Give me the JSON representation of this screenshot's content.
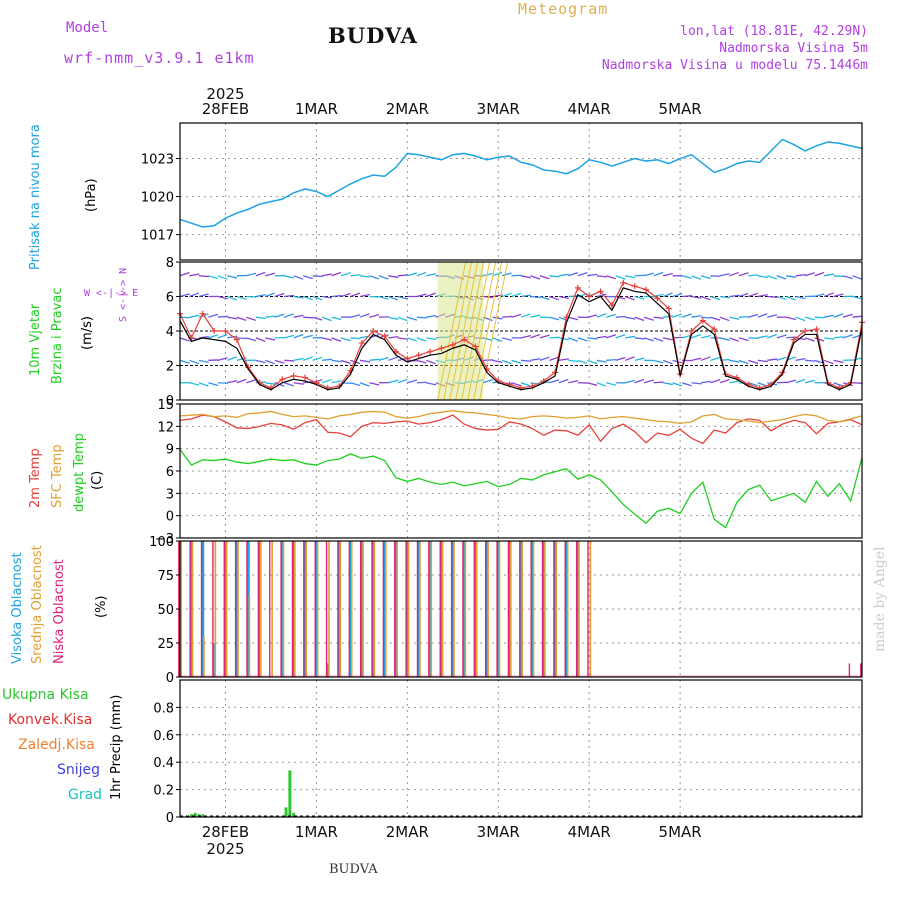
{
  "header": {
    "meteogram_label": "Meteogram",
    "model_label": "Model",
    "model_name": "wrf-nmm_v3.9.1 e1km",
    "station_title": "BUDVA",
    "coords": "lon,lat (18.81E, 42.29N)",
    "elevation": "Nadmorska Visina 5m",
    "model_elevation": "Nadmorska Visina u modelu 75.1446m",
    "footer_station": "BUDVA",
    "watermark": "made by Angel"
  },
  "time_axis": {
    "year": "2025",
    "days": [
      "28FEB",
      "1MAR",
      "2MAR",
      "3MAR",
      "4MAR",
      "5MAR"
    ]
  },
  "panel_labels": {
    "pressure": {
      "title": "Pritisak na nivou mora",
      "unit": "(hPa)"
    },
    "wind": {
      "title1": "10m Vjetar",
      "title2": "Brzina i Pravac",
      "unit": "(m/s)",
      "compass_we": "W <-|-> E",
      "compass_ns": "S <-|-> N"
    },
    "temp": {
      "t2m": "2m Temp",
      "sfc": "SFC Temp",
      "dew": "dewpt Temp",
      "unit": "(C)"
    },
    "cloud": {
      "high": "Visoka Oblacnost",
      "mid": "Srednja Oblacnost",
      "low": "Niska Oblacnost",
      "unit": "(%)"
    },
    "precip": {
      "total": "Ukupna Kisa",
      "conv": "Konvek.Kisa",
      "frozen": "Zaledj.Kisa",
      "snow": "Snijeg",
      "graupel": "Grad",
      "unit": "1hr Precip (mm)"
    }
  },
  "colors": {
    "pressure": "#1ca3e3",
    "t2m": "#e8403a",
    "sfc": "#e0a030",
    "dew": "#1ed01e",
    "wind_speed": "#000000",
    "wind_gust": "#e8403a",
    "high_cloud": "#1ca3e3",
    "mid_cloud": "#e0a030",
    "low_cloud": "#e0207a",
    "precip_total": "#2fc52f",
    "model_label": "#b040e0",
    "meteogram_label": "#e0b050",
    "graupel": "#20c0c0",
    "snow": "#4040e0",
    "frozen": "#f08030",
    "conv": "#e03030"
  },
  "chart_data": [
    {
      "type": "line",
      "name": "pressure",
      "ylabel": "(hPa)",
      "ylim": [
        1015.0,
        1025.8
      ],
      "yticks": [
        1017,
        1020,
        1023
      ],
      "x_unit": "hours since 2025-02-27 12:00 UTC",
      "x": [
        0,
        3,
        6,
        9,
        12,
        15,
        18,
        21,
        24,
        27,
        30,
        33,
        36,
        39,
        42,
        45,
        48,
        51,
        54,
        57,
        60,
        63,
        66,
        69,
        72,
        75,
        78,
        81,
        84,
        87,
        90,
        93,
        96,
        99,
        102,
        105,
        108,
        111,
        114,
        117,
        120,
        123,
        126,
        129,
        132,
        135,
        138,
        141,
        144,
        147,
        150,
        153,
        156,
        159,
        162,
        165,
        168,
        171,
        174,
        177,
        180
      ],
      "values": [
        1018.2,
        1017.9,
        1017.6,
        1017.7,
        1018.3,
        1018.7,
        1019.0,
        1019.4,
        1019.6,
        1019.8,
        1020.3,
        1020.6,
        1020.4,
        1020.0,
        1020.5,
        1021.0,
        1021.4,
        1021.7,
        1021.6,
        1022.3,
        1023.4,
        1023.3,
        1023.1,
        1022.9,
        1023.3,
        1023.4,
        1023.2,
        1022.9,
        1023.1,
        1023.2,
        1022.7,
        1022.5,
        1022.1,
        1022.0,
        1021.8,
        1022.2,
        1022.9,
        1022.7,
        1022.4,
        1022.7,
        1023.0,
        1022.8,
        1022.9,
        1022.6,
        1023.0,
        1023.3,
        1022.6,
        1021.9,
        1022.2,
        1022.6,
        1022.8,
        1022.7,
        1023.6,
        1024.5,
        1024.1,
        1023.6,
        1024.0,
        1024.3,
        1024.2,
        1024.0,
        1023.8
      ]
    },
    {
      "type": "line",
      "name": "wind",
      "ylabel": "(m/s)",
      "ylim": [
        0,
        8
      ],
      "yticks": [
        0,
        2,
        4,
        6,
        8
      ],
      "x_unit": "hours since 2025-02-27 12:00 UTC",
      "x": [
        0,
        3,
        6,
        9,
        12,
        15,
        18,
        21,
        24,
        27,
        30,
        33,
        36,
        39,
        42,
        45,
        48,
        51,
        54,
        57,
        60,
        63,
        66,
        69,
        72,
        75,
        78,
        81,
        84,
        87,
        90,
        93,
        96,
        99,
        102,
        105,
        108,
        111,
        114,
        117,
        120,
        123,
        126,
        129,
        132,
        135,
        138,
        141,
        144,
        147,
        150,
        153,
        156,
        159,
        162,
        165,
        168,
        171,
        174,
        177,
        180
      ],
      "series": [
        {
          "name": "speed",
          "values": [
            4.6,
            3.4,
            3.6,
            3.5,
            3.4,
            3.0,
            1.8,
            0.9,
            0.6,
            1.0,
            1.2,
            1.1,
            0.9,
            0.6,
            0.7,
            1.5,
            3.0,
            3.8,
            3.5,
            2.6,
            2.2,
            2.4,
            2.6,
            2.7,
            3.0,
            3.2,
            2.9,
            1.6,
            1.0,
            0.8,
            0.6,
            0.7,
            1.0,
            1.4,
            4.5,
            6.1,
            5.7,
            6.0,
            5.2,
            6.5,
            6.3,
            6.2,
            5.6,
            5.0,
            1.4,
            3.8,
            4.3,
            3.8,
            1.4,
            1.2,
            0.8,
            0.6,
            0.8,
            1.5,
            3.3,
            3.8,
            3.8,
            0.9,
            0.6,
            0.9,
            4.2
          ]
        },
        {
          "name": "gust",
          "values": [
            5.0,
            3.6,
            5.0,
            4.0,
            4.0,
            3.5,
            1.9,
            1.0,
            0.7,
            1.2,
            1.4,
            1.3,
            1.0,
            0.7,
            0.8,
            1.7,
            3.3,
            4.0,
            3.7,
            2.8,
            2.4,
            2.6,
            2.8,
            3.0,
            3.2,
            3.5,
            3.1,
            1.8,
            1.1,
            0.9,
            0.7,
            0.8,
            1.1,
            1.6,
            4.8,
            6.5,
            6.0,
            6.3,
            5.5,
            6.8,
            6.6,
            6.4,
            5.9,
            5.3,
            1.5,
            4.0,
            4.6,
            4.1,
            1.5,
            1.3,
            0.9,
            0.7,
            0.9,
            1.6,
            3.5,
            4.0,
            4.1,
            1.0,
            0.7,
            1.0,
            4.5
          ]
        }
      ]
    },
    {
      "type": "line",
      "name": "temperature",
      "ylabel": "(C)",
      "ylim": [
        -3,
        15
      ],
      "yticks": [
        -3,
        0,
        3,
        6,
        9,
        12,
        15
      ],
      "x_unit": "hours since 2025-02-27 12:00 UTC",
      "x": [
        0,
        3,
        6,
        9,
        12,
        15,
        18,
        21,
        24,
        27,
        30,
        33,
        36,
        39,
        42,
        45,
        48,
        51,
        54,
        57,
        60,
        63,
        66,
        69,
        72,
        75,
        78,
        81,
        84,
        87,
        90,
        93,
        96,
        99,
        102,
        105,
        108,
        111,
        114,
        117,
        120,
        123,
        126,
        129,
        132,
        135,
        138,
        141,
        144,
        147,
        150,
        153,
        156,
        159,
        162,
        165,
        168,
        171,
        174,
        177,
        180
      ],
      "series": [
        {
          "name": "2m Temp",
          "values": [
            12.8,
            13.0,
            13.5,
            13.3,
            12.6,
            11.8,
            11.7,
            12.0,
            12.4,
            12.2,
            11.6,
            12.5,
            12.9,
            11.2,
            11.1,
            10.6,
            12.0,
            12.5,
            12.4,
            12.6,
            12.7,
            12.3,
            12.5,
            12.9,
            13.5,
            12.3,
            11.7,
            11.5,
            11.6,
            12.6,
            12.3,
            11.7,
            10.8,
            11.5,
            11.4,
            10.8,
            12.2,
            10.0,
            11.7,
            12.3,
            11.3,
            9.8,
            11.1,
            10.8,
            11.6,
            10.4,
            9.7,
            11.5,
            11.1,
            12.5,
            13.0,
            12.8,
            11.4,
            12.3,
            12.8,
            12.5,
            11.0,
            12.4,
            12.6,
            12.9,
            12.2
          ]
        },
        {
          "name": "SFC Temp",
          "values": [
            13.4,
            13.5,
            13.6,
            13.3,
            13.4,
            13.2,
            13.7,
            13.8,
            14.0,
            13.6,
            13.3,
            13.4,
            13.2,
            13.0,
            13.4,
            13.6,
            13.9,
            14.0,
            13.9,
            13.3,
            13.1,
            13.3,
            13.7,
            13.9,
            14.1,
            13.9,
            13.8,
            13.6,
            13.4,
            13.1,
            13.0,
            13.3,
            13.4,
            13.3,
            13.1,
            13.2,
            13.4,
            13.0,
            13.2,
            13.3,
            13.1,
            12.9,
            12.7,
            12.6,
            12.4,
            12.6,
            13.4,
            13.6,
            13.0,
            12.9,
            12.7,
            12.5,
            12.7,
            12.9,
            13.3,
            13.6,
            13.4,
            12.8,
            12.6,
            13.0,
            13.4
          ]
        },
        {
          "name": "dewpt Temp",
          "values": [
            8.9,
            6.8,
            7.5,
            7.4,
            7.6,
            7.2,
            7.0,
            7.3,
            7.6,
            7.4,
            7.5,
            7.0,
            6.8,
            7.4,
            7.6,
            8.3,
            7.7,
            8.0,
            7.4,
            5.1,
            4.6,
            5.0,
            4.5,
            4.2,
            4.5,
            4.0,
            4.3,
            4.6,
            3.9,
            4.2,
            5.0,
            4.8,
            5.5,
            5.9,
            6.3,
            4.9,
            5.5,
            4.8,
            3.2,
            1.5,
            0.2,
            -1.0,
            0.6,
            1.0,
            0.3,
            3.0,
            4.5,
            -0.5,
            -1.6,
            1.8,
            3.5,
            4.1,
            2.0,
            2.5,
            3.0,
            1.8,
            4.6,
            2.6,
            4.3,
            2.0,
            7.8
          ]
        }
      ]
    },
    {
      "type": "bar",
      "name": "cloud_cover",
      "ylabel": "(%)",
      "ylim": [
        0,
        100
      ],
      "yticks": [
        0,
        25,
        50,
        75,
        100
      ],
      "x_unit": "hours since 2025-02-27 12:00 UTC",
      "x": [
        0,
        3,
        6,
        9,
        12,
        15,
        18,
        21,
        24,
        27,
        30,
        33,
        36,
        39,
        42,
        45,
        48,
        51,
        54,
        57,
        60,
        63,
        66,
        69,
        72,
        75,
        78,
        81,
        84,
        87,
        90,
        93,
        96,
        99,
        102,
        105,
        108,
        111,
        114,
        117,
        120,
        123,
        126,
        129,
        132,
        135,
        138,
        141,
        144,
        147,
        150,
        153,
        156,
        159,
        162,
        165,
        168,
        171,
        174,
        177,
        180
      ],
      "series": [
        {
          "name": "Visoka Oblacnost",
          "values": [
            100,
            100,
            100,
            25,
            100,
            100,
            100,
            100,
            0,
            100,
            100,
            100,
            100,
            10,
            100,
            100,
            100,
            100,
            100,
            100,
            100,
            100,
            100,
            100,
            100,
            100,
            100,
            100,
            100,
            100,
            100,
            100,
            100,
            100,
            100,
            100,
            0,
            0,
            0,
            0,
            0,
            0,
            0,
            0,
            0,
            0,
            0,
            0,
            0,
            0,
            0,
            0,
            0,
            0,
            0,
            0,
            0,
            0,
            0,
            0,
            0
          ]
        },
        {
          "name": "Srednja Oblacnost",
          "values": [
            100,
            100,
            30,
            100,
            100,
            100,
            60,
            100,
            100,
            100,
            100,
            100,
            100,
            100,
            100,
            100,
            100,
            100,
            100,
            100,
            100,
            100,
            100,
            100,
            100,
            100,
            100,
            100,
            100,
            100,
            100,
            100,
            100,
            100,
            100,
            100,
            100,
            0,
            0,
            0,
            0,
            0,
            0,
            0,
            0,
            0,
            0,
            0,
            0,
            0,
            0,
            0,
            0,
            0,
            0,
            0,
            0,
            0,
            0,
            0,
            0
          ]
        },
        {
          "name": "Niska Oblacnost",
          "values": [
            100,
            100,
            100,
            100,
            100,
            100,
            100,
            100,
            100,
            100,
            100,
            100,
            100,
            100,
            100,
            100,
            100,
            100,
            100,
            100,
            100,
            100,
            100,
            100,
            100,
            100,
            100,
            100,
            100,
            100,
            100,
            100,
            100,
            100,
            100,
            100,
            100,
            0,
            0,
            0,
            0,
            0,
            0,
            0,
            0,
            0,
            0,
            0,
            0,
            0,
            0,
            0,
            0,
            0,
            0,
            0,
            0,
            0,
            0,
            10,
            10
          ]
        }
      ]
    },
    {
      "type": "bar",
      "name": "precipitation",
      "ylabel": "1hr Precip (mm)",
      "ylim": [
        0,
        1.0
      ],
      "yticks": [
        0,
        0.2,
        0.4,
        0.6,
        0.8
      ],
      "x_unit": "hours since 2025-02-27 12:00 UTC",
      "x": [
        3,
        4,
        5,
        6,
        28,
        29,
        30
      ],
      "series": [
        {
          "name": "Ukupna Kisa",
          "values": [
            0.02,
            0.03,
            0.02,
            0.02,
            0.07,
            0.34,
            0.03
          ]
        }
      ]
    }
  ]
}
